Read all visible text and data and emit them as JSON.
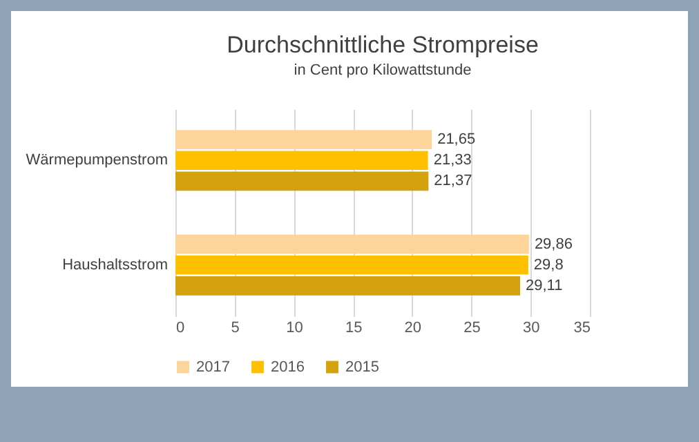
{
  "chart_data": {
    "type": "bar",
    "orientation": "horizontal",
    "title": "Durchschnittliche Strompreise",
    "subtitle": "in Cent pro Kilowattstunde",
    "categories": [
      "Wärmepumpenstrom",
      "Haushaltsstrom"
    ],
    "series": [
      {
        "name": "2017",
        "color": "#fdd49a",
        "values": [
          21.65,
          29.86
        ],
        "value_labels": [
          "21,65",
          "29,86"
        ]
      },
      {
        "name": "2016",
        "color": "#ffc000",
        "values": [
          21.33,
          29.8
        ],
        "value_labels": [
          "21,33",
          "29,8"
        ]
      },
      {
        "name": "2015",
        "color": "#d4a20c",
        "values": [
          21.37,
          29.11
        ],
        "value_labels": [
          "21,37",
          "29,11"
        ]
      }
    ],
    "xlim": [
      0,
      35
    ],
    "xticks": [
      0,
      5,
      10,
      15,
      20,
      25,
      30,
      35
    ],
    "grid": "x",
    "legend": "bottom"
  }
}
